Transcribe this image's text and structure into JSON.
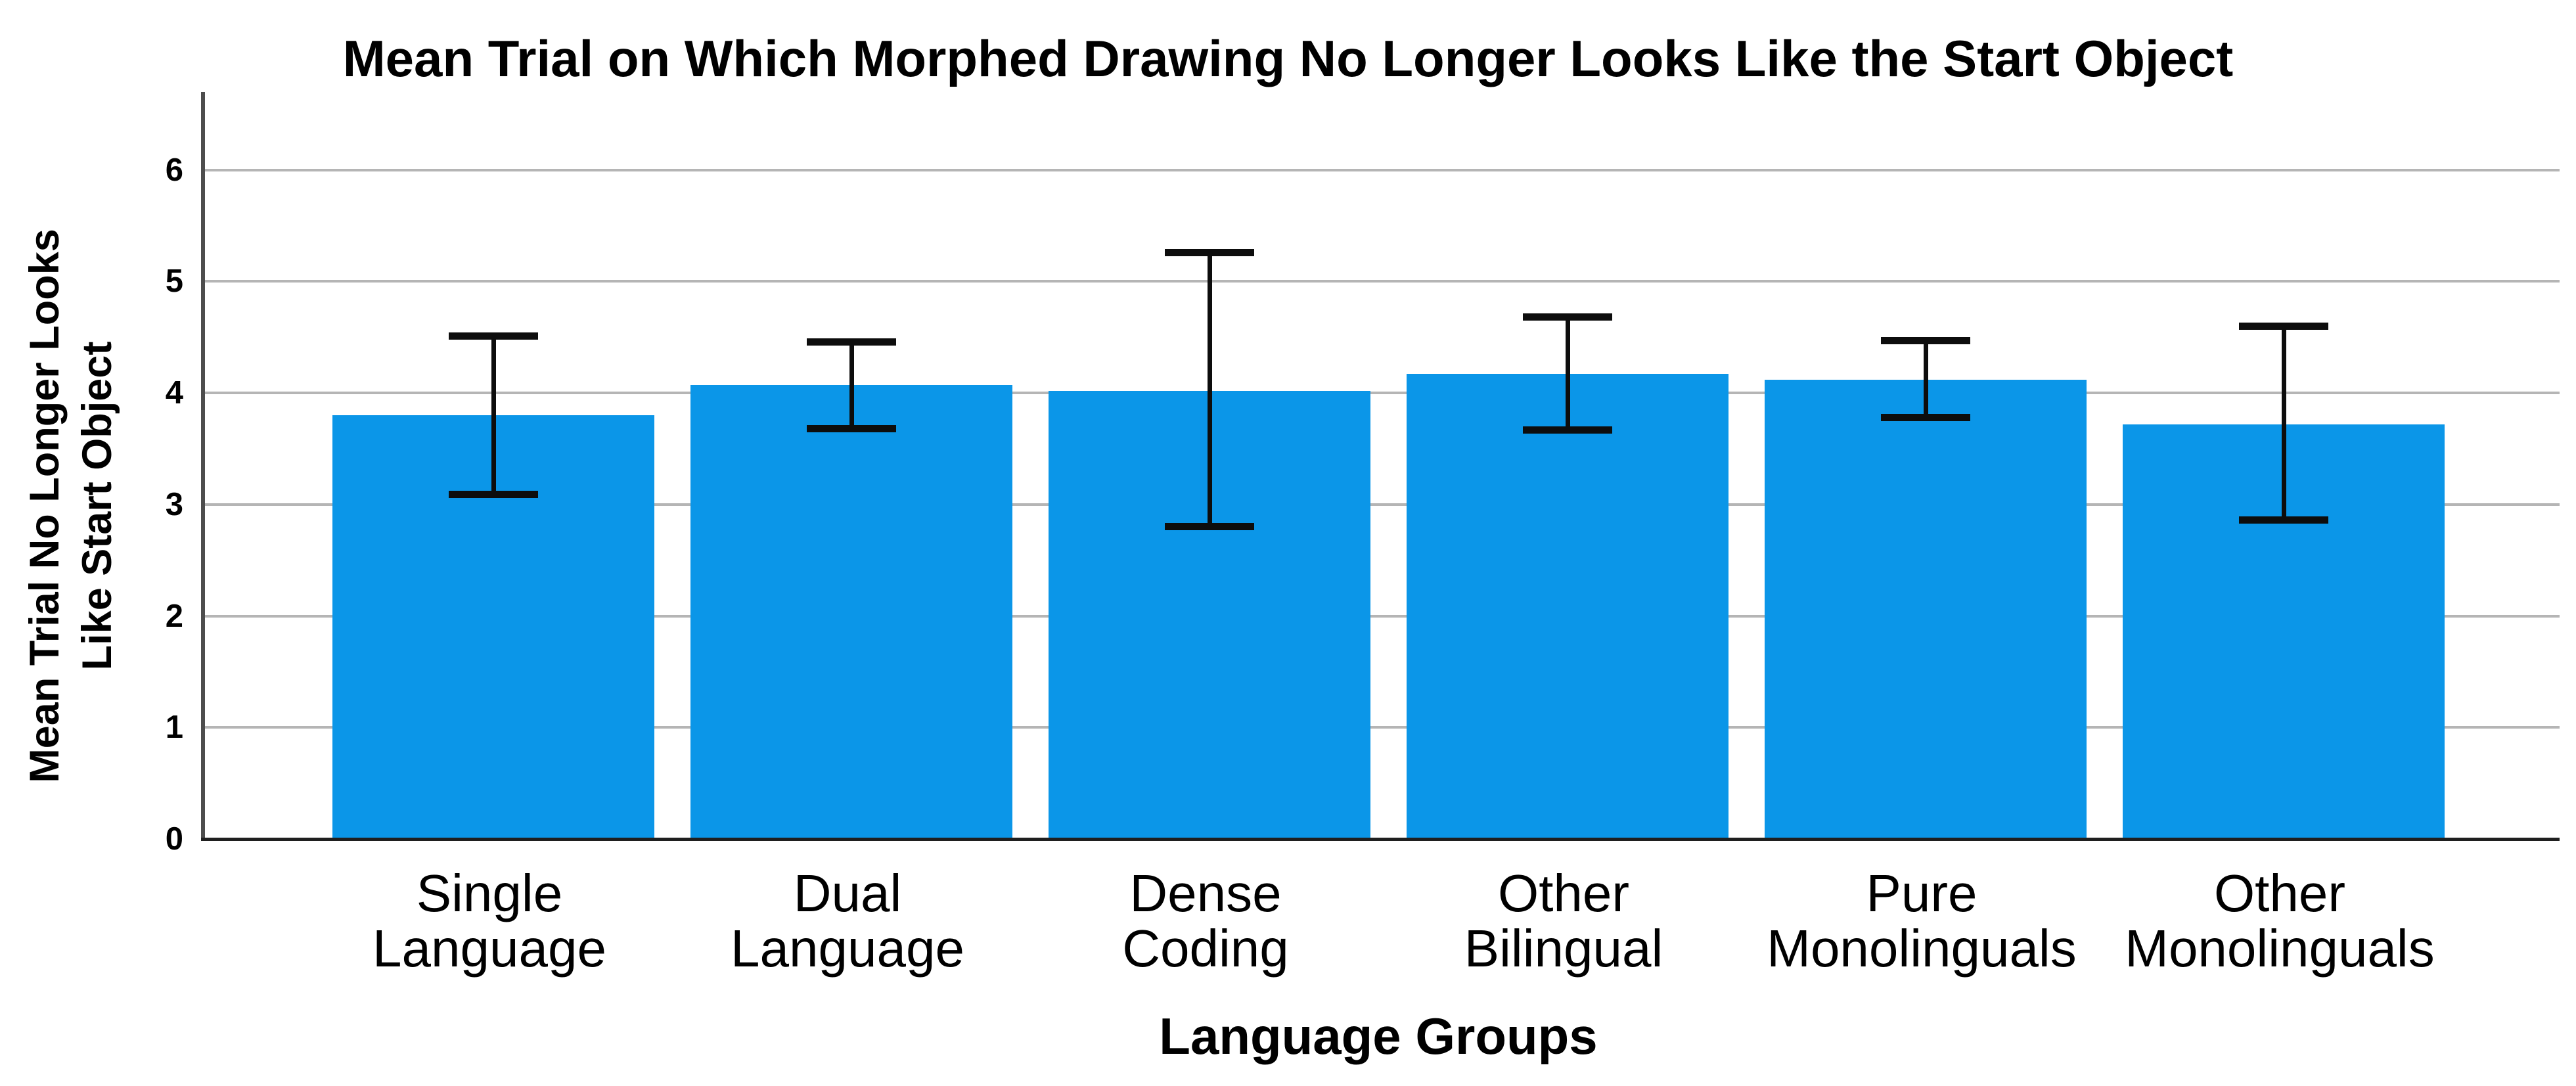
{
  "chart_data": {
    "type": "bar",
    "title": "Mean Trial on Which Morphed Drawing No Longer Looks Like the Start Object",
    "xlabel": "Language Groups",
    "ylabel": "Mean Trial No Longer Looks Like Start Object",
    "ylabel_lines": [
      "Mean Trial No Longer Looks",
      "Like Start Object"
    ],
    "categories": [
      "Single Language",
      "Dual Language",
      "Dense Coding",
      "Other Bilingual",
      "Pure Monolinguals",
      "Other Monolinguals"
    ],
    "category_label_lines": [
      [
        "Single",
        "Language"
      ],
      [
        "Dual",
        "Language"
      ],
      [
        "Dense",
        "Coding"
      ],
      [
        "Other",
        "Bilingual"
      ],
      [
        "Pure",
        "Monolinguals"
      ],
      [
        "Other",
        "Monolinguals"
      ]
    ],
    "series": [
      {
        "name": "Mean trial",
        "values": [
          3.8,
          4.07,
          4.02,
          4.17,
          4.12,
          3.72
        ]
      }
    ],
    "error_bars": {
      "low": [
        3.09,
        3.68,
        2.8,
        3.67,
        3.78,
        2.86
      ],
      "high": [
        4.51,
        4.46,
        5.26,
        4.68,
        4.47,
        4.6
      ]
    },
    "yticks": [
      "0",
      "1",
      "2",
      "3",
      "4",
      "5",
      "6"
    ],
    "ylim": [
      0,
      6.7
    ],
    "grid": true,
    "legend": false,
    "bar_color": "#0b96e8",
    "error_bar_color": "#0d0d0d",
    "gridline_color": "#b5b5b5"
  }
}
